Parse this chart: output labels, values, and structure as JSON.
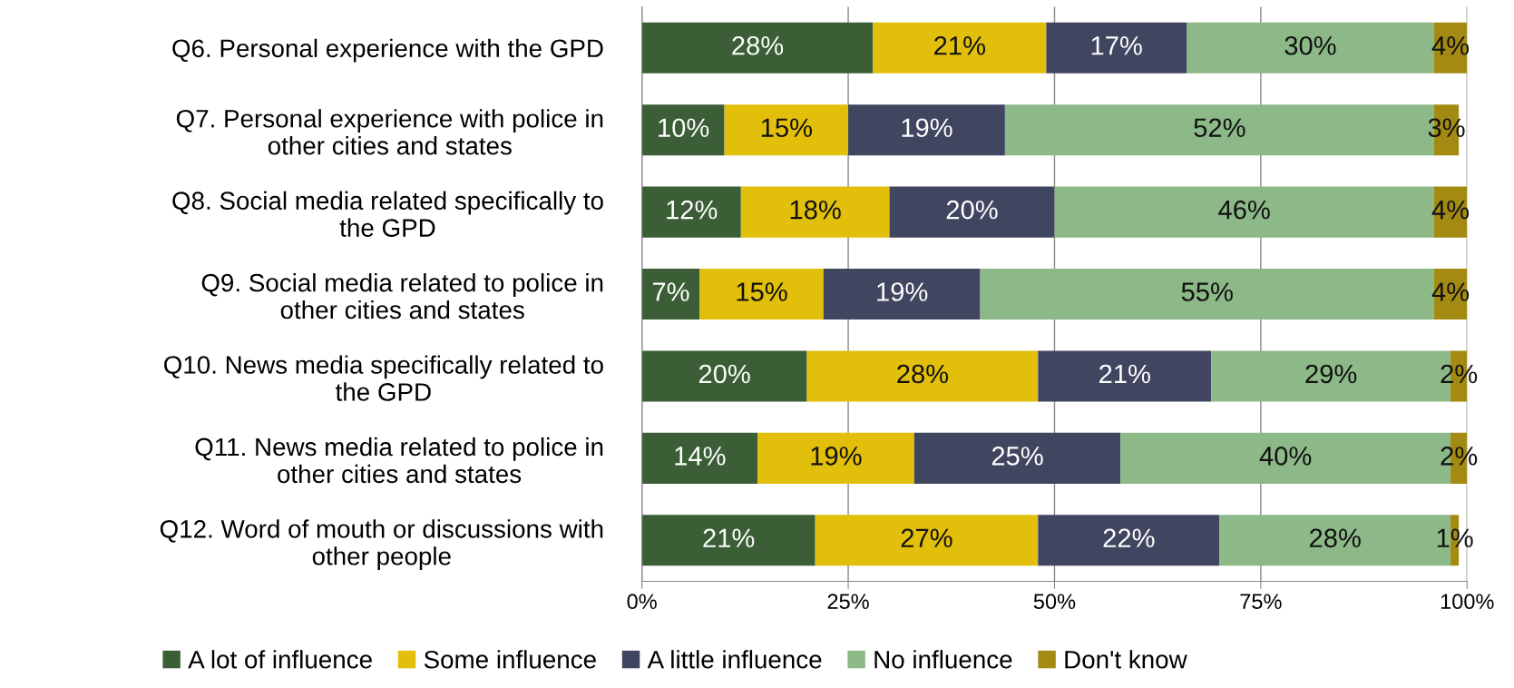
{
  "chart_data": {
    "type": "bar",
    "orientation": "horizontal",
    "stacked": true,
    "categories": [
      "Q6. Personal experience with the GPD",
      "Q7. Personal experience with police in\nother cities and states",
      "Q8. Social media related specifically to\nthe GPD",
      "Q9. Social media related to police in\nother cities and states",
      "Q10. News media specifically related to\nthe GPD",
      "Q11. News media related to police in\nother cities and states",
      "Q12. Word of mouth or discussions with\nother people"
    ],
    "series": [
      {
        "name": "A lot of influence",
        "color": "#3b5e36",
        "values": [
          28,
          10,
          12,
          7,
          20,
          14,
          21
        ],
        "value_labels": [
          "28%",
          "10%",
          "12%",
          "7%",
          "20%",
          "14%",
          "21%"
        ]
      },
      {
        "name": "Some influence",
        "color": "#e2bf0a",
        "values": [
          21,
          15,
          18,
          15,
          28,
          19,
          27
        ],
        "value_labels": [
          "21%",
          "15%",
          "18%",
          "15%",
          "28%",
          "19%",
          "27%"
        ]
      },
      {
        "name": "A little influence",
        "color": "#414660",
        "values": [
          17,
          19,
          20,
          19,
          21,
          25,
          22
        ],
        "value_labels": [
          "17%",
          "19%",
          "20%",
          "19%",
          "21%",
          "25%",
          "22%"
        ]
      },
      {
        "name": "No influence",
        "color": "#8db887",
        "values": [
          30,
          52,
          46,
          55,
          29,
          40,
          28
        ],
        "value_labels": [
          "30%",
          "52%",
          "46%",
          "55%",
          "29%",
          "40%",
          "28%"
        ]
      },
      {
        "name": "Don't know",
        "color": "#a38a12",
        "values": [
          4,
          3,
          4,
          4,
          2,
          2,
          1
        ],
        "value_labels": [
          "4%",
          "3%",
          "4%",
          "4%",
          "2%",
          "2%",
          "1%"
        ]
      }
    ],
    "xlim": [
      0,
      100
    ],
    "xticks": [
      {
        "value": 0,
        "label": "0%"
      },
      {
        "value": 25,
        "label": "25%"
      },
      {
        "value": 50,
        "label": "50%"
      },
      {
        "value": 75,
        "label": "75%"
      },
      {
        "value": 100,
        "label": "100%"
      }
    ],
    "grid": "x",
    "legend": "bottom"
  }
}
